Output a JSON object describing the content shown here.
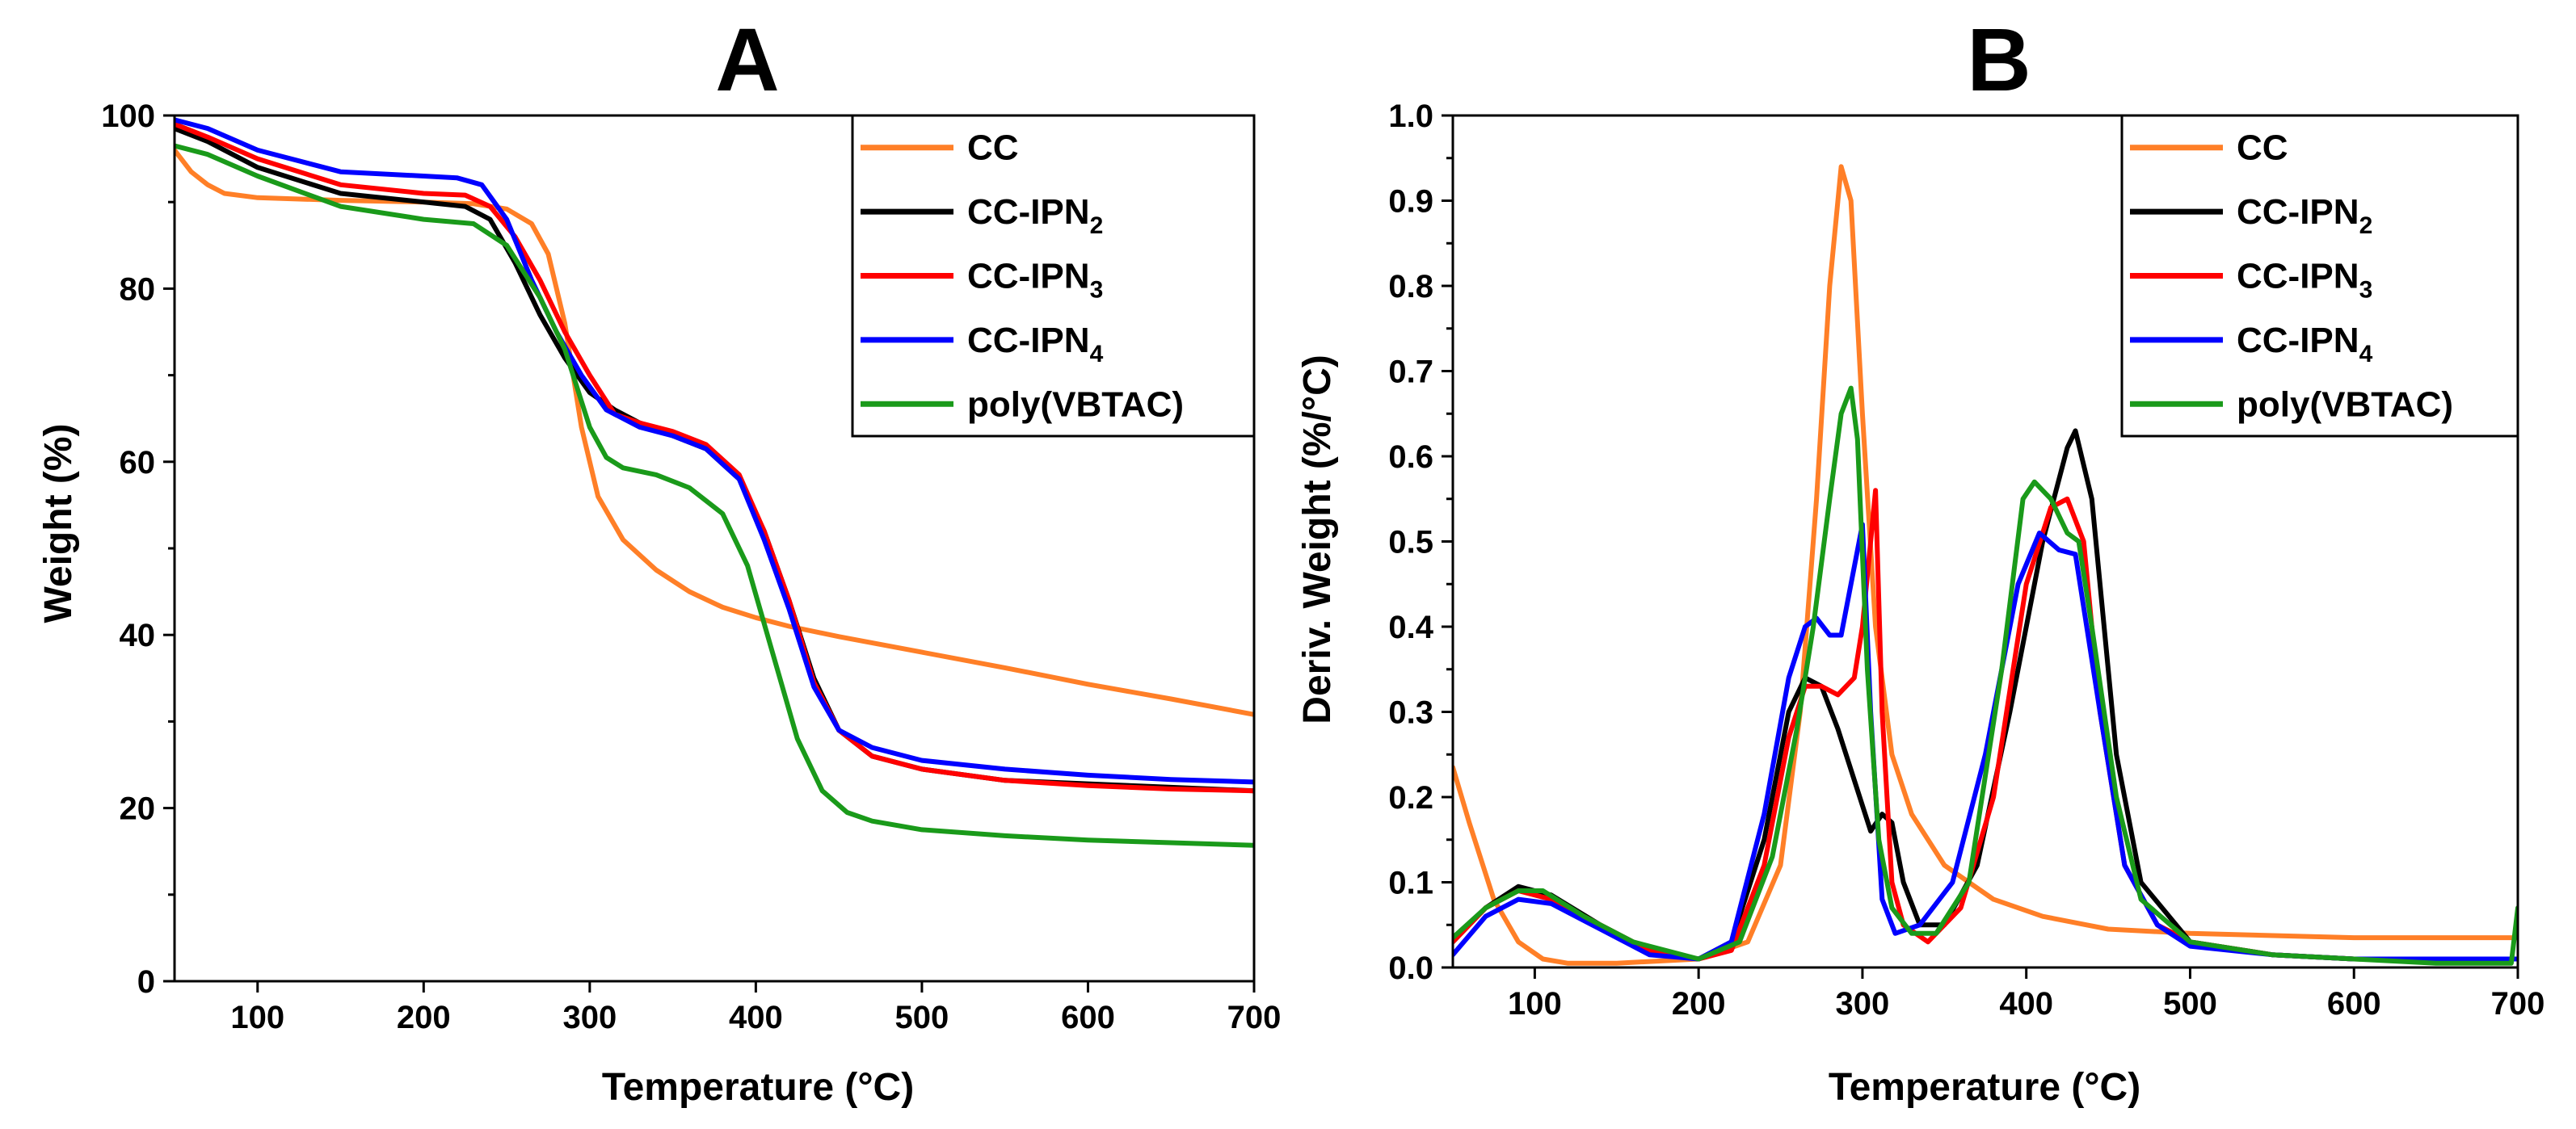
{
  "colors": {
    "CC": "#ff7f27",
    "CC-IPN2": "#000000",
    "CC-IPN3": "#ff0000",
    "CC-IPN4": "#0000ff",
    "poly(VBTAC)": "#1a9a1a"
  },
  "chart_data": [
    {
      "type": "line",
      "panel": "A",
      "title": "A",
      "xlabel": "Temperature (°C)",
      "ylabel": "Weight (%)",
      "xlim": [
        50,
        700
      ],
      "ylim": [
        0,
        100
      ],
      "xticks": [
        100,
        200,
        300,
        400,
        500,
        600,
        700
      ],
      "yticks": [
        0,
        20,
        40,
        60,
        80,
        100
      ],
      "legend_position": "top-right",
      "legend": [
        {
          "base": "CC",
          "sub": "",
          "key": "CC"
        },
        {
          "base": "CC-IPN",
          "sub": "2",
          "key": "CC-IPN2"
        },
        {
          "base": "CC-IPN",
          "sub": "3",
          "key": "CC-IPN3"
        },
        {
          "base": "CC-IPN",
          "sub": "4",
          "key": "CC-IPN4"
        },
        {
          "base": "poly(VBTAC)",
          "sub": "",
          "key": "poly(VBTAC)"
        }
      ],
      "series": [
        {
          "name": "CC",
          "key": "CC",
          "x": [
            50,
            60,
            70,
            80,
            100,
            150,
            200,
            230,
            250,
            265,
            275,
            285,
            295,
            305,
            320,
            340,
            360,
            380,
            400,
            420,
            450,
            500,
            550,
            600,
            650,
            700
          ],
          "y": [
            96,
            93.5,
            92,
            91,
            90.5,
            90.2,
            90,
            89.8,
            89.2,
            87.5,
            84,
            76,
            64,
            56,
            51,
            47.5,
            45,
            43.2,
            42,
            41,
            39.8,
            38,
            36.2,
            34.3,
            32.6,
            30.8
          ]
        },
        {
          "name": "CC-IPN2",
          "key": "CC-IPN2",
          "x": [
            50,
            70,
            100,
            150,
            200,
            225,
            240,
            255,
            270,
            285,
            300,
            315,
            330,
            350,
            370,
            390,
            405,
            420,
            435,
            450,
            470,
            500,
            550,
            600,
            650,
            700
          ],
          "y": [
            98.5,
            97,
            94,
            91,
            90,
            89.5,
            88,
            83,
            77,
            72,
            68,
            66,
            64.5,
            63,
            61.5,
            58,
            52,
            44,
            35,
            29,
            26,
            24.5,
            23.2,
            22.8,
            22.4,
            22
          ]
        },
        {
          "name": "CC-IPN3",
          "key": "CC-IPN3",
          "x": [
            50,
            70,
            100,
            150,
            200,
            225,
            240,
            255,
            270,
            285,
            300,
            315,
            330,
            350,
            370,
            390,
            405,
            420,
            435,
            450,
            470,
            500,
            550,
            600,
            650,
            700
          ],
          "y": [
            99,
            97.5,
            95,
            92,
            91,
            90.8,
            89.5,
            86,
            81,
            75,
            70,
            65.5,
            64.5,
            63.5,
            62,
            58.5,
            52,
            44,
            34.5,
            29,
            26,
            24.5,
            23.2,
            22.6,
            22.2,
            22
          ]
        },
        {
          "name": "CC-IPN4",
          "key": "CC-IPN4",
          "x": [
            50,
            70,
            100,
            150,
            200,
            220,
            235,
            250,
            265,
            280,
            295,
            310,
            330,
            350,
            370,
            390,
            405,
            420,
            435,
            450,
            470,
            500,
            550,
            600,
            650,
            700
          ],
          "y": [
            99.5,
            98.5,
            96,
            93.5,
            93,
            92.8,
            92,
            88,
            81,
            75,
            70,
            66,
            64,
            63,
            61.5,
            58,
            51,
            43,
            34,
            29,
            27,
            25.5,
            24.5,
            23.8,
            23.3,
            23
          ]
        },
        {
          "name": "poly(VBTAC)",
          "key": "poly(VBTAC)",
          "x": [
            50,
            70,
            100,
            150,
            200,
            230,
            250,
            270,
            285,
            300,
            310,
            320,
            340,
            360,
            380,
            395,
            410,
            425,
            440,
            455,
            470,
            500,
            550,
            600,
            650,
            700
          ],
          "y": [
            96.5,
            95.5,
            93,
            89.5,
            88,
            87.5,
            85,
            79,
            73,
            64,
            60.5,
            59.3,
            58.5,
            57,
            54,
            48,
            38,
            28,
            22,
            19.5,
            18.5,
            17.5,
            16.8,
            16.3,
            16,
            15.7
          ]
        }
      ]
    },
    {
      "type": "line",
      "panel": "B",
      "title": "B",
      "xlabel": "Temperature (°C)",
      "ylabel": "Deriv. Weight (%/°C)",
      "xlim": [
        50,
        700
      ],
      "ylim": [
        0,
        1
      ],
      "xticks": [
        100,
        200,
        300,
        400,
        500,
        600,
        700
      ],
      "yticks": [
        0,
        0.1,
        0.2,
        0.3,
        0.4,
        0.5,
        0.6,
        0.7,
        0.8,
        0.9,
        1
      ],
      "ytick_labels": [
        "0.0",
        "0.1",
        "0.2",
        "0.3",
        "0.4",
        "0.5",
        "0.6",
        "0.7",
        "0.8",
        "0.9",
        "1.0"
      ],
      "legend_position": "top-right",
      "legend": [
        {
          "base": "CC",
          "sub": "",
          "key": "CC"
        },
        {
          "base": "CC-IPN",
          "sub": "2",
          "key": "CC-IPN2"
        },
        {
          "base": "CC-IPN",
          "sub": "3",
          "key": "CC-IPN3"
        },
        {
          "base": "CC-IPN",
          "sub": "4",
          "key": "CC-IPN4"
        },
        {
          "base": "poly(VBTAC)",
          "sub": "",
          "key": "poly(VBTAC)"
        }
      ],
      "series": [
        {
          "name": "CC",
          "key": "CC",
          "x": [
            50,
            60,
            75,
            90,
            105,
            120,
            150,
            200,
            230,
            250,
            262,
            272,
            280,
            287,
            293,
            300,
            308,
            318,
            330,
            350,
            380,
            410,
            450,
            500,
            600,
            700
          ],
          "y": [
            0.235,
            0.17,
            0.08,
            0.03,
            0.01,
            0.005,
            0.005,
            0.01,
            0.03,
            0.12,
            0.3,
            0.55,
            0.8,
            0.94,
            0.9,
            0.65,
            0.4,
            0.25,
            0.18,
            0.12,
            0.08,
            0.06,
            0.045,
            0.04,
            0.035,
            0.035
          ]
        },
        {
          "name": "CC-IPN2",
          "key": "CC-IPN2",
          "x": [
            50,
            70,
            90,
            110,
            140,
            170,
            200,
            220,
            240,
            255,
            265,
            275,
            285,
            295,
            305,
            312,
            318,
            325,
            335,
            350,
            370,
            390,
            410,
            425,
            430,
            440,
            455,
            470,
            500,
            550,
            600,
            650,
            700
          ],
          "y": [
            0.03,
            0.07,
            0.095,
            0.085,
            0.05,
            0.02,
            0.01,
            0.03,
            0.15,
            0.3,
            0.34,
            0.33,
            0.28,
            0.22,
            0.16,
            0.18,
            0.17,
            0.1,
            0.05,
            0.05,
            0.12,
            0.3,
            0.5,
            0.61,
            0.63,
            0.55,
            0.25,
            0.1,
            0.03,
            0.015,
            0.01,
            0.01,
            0.01
          ]
        },
        {
          "name": "CC-IPN3",
          "key": "CC-IPN3",
          "x": [
            50,
            70,
            90,
            110,
            140,
            170,
            200,
            220,
            240,
            255,
            265,
            275,
            285,
            295,
            300,
            305,
            308,
            312,
            318,
            325,
            340,
            360,
            380,
            400,
            415,
            425,
            435,
            445,
            460,
            480,
            500,
            550,
            600,
            650,
            700
          ],
          "y": [
            0.03,
            0.07,
            0.09,
            0.08,
            0.05,
            0.02,
            0.01,
            0.02,
            0.12,
            0.27,
            0.33,
            0.33,
            0.32,
            0.34,
            0.4,
            0.5,
            0.56,
            0.3,
            0.1,
            0.05,
            0.03,
            0.07,
            0.2,
            0.45,
            0.54,
            0.55,
            0.5,
            0.3,
            0.12,
            0.05,
            0.03,
            0.015,
            0.01,
            0.01,
            0.01
          ]
        },
        {
          "name": "CC-IPN4",
          "key": "CC-IPN4",
          "x": [
            50,
            70,
            90,
            110,
            140,
            170,
            200,
            220,
            240,
            255,
            265,
            272,
            280,
            287,
            293,
            300,
            305,
            312,
            320,
            335,
            355,
            375,
            395,
            408,
            420,
            430,
            445,
            460,
            480,
            500,
            550,
            600,
            650,
            700
          ],
          "y": [
            0.015,
            0.06,
            0.08,
            0.075,
            0.045,
            0.015,
            0.01,
            0.03,
            0.18,
            0.34,
            0.4,
            0.41,
            0.39,
            0.39,
            0.45,
            0.52,
            0.3,
            0.08,
            0.04,
            0.05,
            0.1,
            0.25,
            0.45,
            0.51,
            0.49,
            0.485,
            0.3,
            0.12,
            0.05,
            0.025,
            0.015,
            0.01,
            0.01,
            0.01
          ]
        },
        {
          "name": "poly(VBTAC)",
          "key": "poly(VBTAC)",
          "x": [
            50,
            70,
            90,
            105,
            130,
            160,
            200,
            225,
            245,
            260,
            270,
            280,
            287,
            293,
            297,
            303,
            310,
            318,
            330,
            345,
            365,
            385,
            398,
            405,
            415,
            425,
            432,
            440,
            455,
            470,
            500,
            550,
            600,
            650,
            696,
            700
          ],
          "y": [
            0.035,
            0.07,
            0.09,
            0.09,
            0.06,
            0.03,
            0.01,
            0.03,
            0.13,
            0.28,
            0.4,
            0.55,
            0.65,
            0.68,
            0.62,
            0.35,
            0.15,
            0.07,
            0.04,
            0.04,
            0.1,
            0.35,
            0.55,
            0.57,
            0.55,
            0.51,
            0.5,
            0.4,
            0.2,
            0.08,
            0.03,
            0.015,
            0.01,
            0.005,
            0.005,
            0.07
          ]
        }
      ]
    }
  ]
}
